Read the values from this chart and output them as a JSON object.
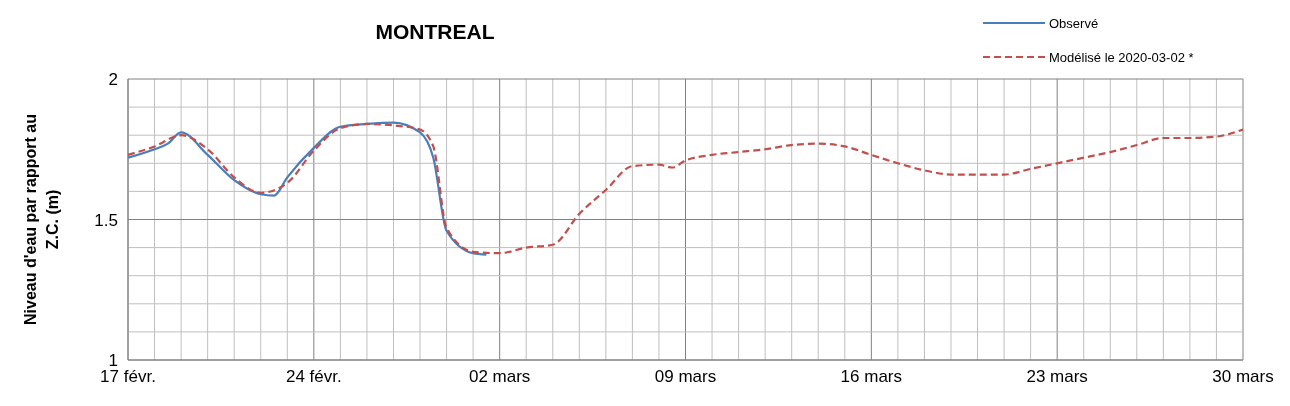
{
  "chart_data": {
    "type": "line",
    "title": "MONTREAL",
    "ylabel": "Niveau d'eau par rapport au Z.C. (m)",
    "xlim": [
      "2020-02-17",
      "2020-03-30"
    ],
    "xticks": [
      {
        "value": "2020-02-17",
        "label": "17 févr."
      },
      {
        "value": "2020-02-18",
        "label": null
      },
      {
        "value": "2020-02-19",
        "label": null
      },
      {
        "value": "2020-02-20",
        "label": null
      },
      {
        "value": "2020-02-21",
        "label": null
      },
      {
        "value": "2020-02-22",
        "label": null
      },
      {
        "value": "2020-02-23",
        "label": null
      },
      {
        "value": "2020-02-24",
        "label": "24 févr."
      },
      {
        "value": "2020-02-25",
        "label": null
      },
      {
        "value": "2020-02-26",
        "label": null
      },
      {
        "value": "2020-02-27",
        "label": null
      },
      {
        "value": "2020-02-28",
        "label": null
      },
      {
        "value": "2020-02-29",
        "label": null
      },
      {
        "value": "2020-03-01",
        "label": null
      },
      {
        "value": "2020-03-02",
        "label": "02 mars"
      },
      {
        "value": "2020-03-03",
        "label": null
      },
      {
        "value": "2020-03-04",
        "label": null
      },
      {
        "value": "2020-03-05",
        "label": null
      },
      {
        "value": "2020-03-06",
        "label": null
      },
      {
        "value": "2020-03-07",
        "label": null
      },
      {
        "value": "2020-03-08",
        "label": null
      },
      {
        "value": "2020-03-09",
        "label": "09 mars"
      },
      {
        "value": "2020-03-10",
        "label": null
      },
      {
        "value": "2020-03-11",
        "label": null
      },
      {
        "value": "2020-03-12",
        "label": null
      },
      {
        "value": "2020-03-13",
        "label": null
      },
      {
        "value": "2020-03-14",
        "label": null
      },
      {
        "value": "2020-03-15",
        "label": null
      },
      {
        "value": "2020-03-16",
        "label": "16 mars"
      },
      {
        "value": "2020-03-17",
        "label": null
      },
      {
        "value": "2020-03-18",
        "label": null
      },
      {
        "value": "2020-03-19",
        "label": null
      },
      {
        "value": "2020-03-20",
        "label": null
      },
      {
        "value": "2020-03-21",
        "label": null
      },
      {
        "value": "2020-03-22",
        "label": null
      },
      {
        "value": "2020-03-23",
        "label": "23 mars"
      },
      {
        "value": "2020-03-24",
        "label": null
      },
      {
        "value": "2020-03-25",
        "label": null
      },
      {
        "value": "2020-03-26",
        "label": null
      },
      {
        "value": "2020-03-27",
        "label": null
      },
      {
        "value": "2020-03-28",
        "label": null
      },
      {
        "value": "2020-03-29",
        "label": null
      },
      {
        "value": "2020-03-30",
        "label": "30 mars"
      }
    ],
    "ylim": [
      1,
      2
    ],
    "yticks": [
      1,
      {
        "value": 1.1,
        "label": null
      },
      {
        "value": 1.2,
        "label": null
      },
      {
        "value": 1.3,
        "label": null
      },
      {
        "value": 1.4,
        "label": null
      },
      1.5,
      {
        "value": 1.6,
        "label": null
      },
      {
        "value": 1.7,
        "label": null
      },
      {
        "value": 1.8,
        "label": null
      },
      {
        "value": 1.9,
        "label": null
      },
      2
    ],
    "grid": true,
    "legend": "top right",
    "marker": "none",
    "series": [
      {
        "name": "Observé",
        "color": "#4a7ebb",
        "line_style": "solid",
        "x": [
          "2020-02-17",
          "2020-02-18",
          "2020-02-18T12:00",
          "2020-02-19",
          "2020-02-20",
          "2020-02-21",
          "2020-02-22",
          "2020-02-22T12:00",
          "2020-02-23",
          "2020-02-24",
          "2020-02-25",
          "2020-02-26",
          "2020-02-27",
          "2020-02-28",
          "2020-02-28T12:00",
          "2020-02-29",
          "2020-03-01",
          "2020-03-01T12:00"
        ],
        "values": [
          1.72,
          1.75,
          1.77,
          1.81,
          1.73,
          1.64,
          1.59,
          1.585,
          1.65,
          1.755,
          1.83,
          1.84,
          1.845,
          1.81,
          1.72,
          1.46,
          1.38,
          1.375
        ]
      },
      {
        "name": "Modélisé le 2020-03-02 *",
        "color": "#c0504d",
        "line_style": "dashed",
        "x": [
          "2020-02-17",
          "2020-02-18",
          "2020-02-19",
          "2020-02-20",
          "2020-02-21",
          "2020-02-22",
          "2020-02-23",
          "2020-02-24",
          "2020-02-25",
          "2020-02-26",
          "2020-02-27",
          "2020-02-28",
          "2020-02-28T12:00",
          "2020-02-29",
          "2020-03-01",
          "2020-03-02",
          "2020-03-03",
          "2020-03-04",
          "2020-03-05",
          "2020-03-06",
          "2020-03-07",
          "2020-03-08",
          "2020-03-08T12:00",
          "2020-03-09",
          "2020-03-10",
          "2020-03-11",
          "2020-03-12",
          "2020-03-13",
          "2020-03-14",
          "2020-03-15",
          "2020-03-16",
          "2020-03-17",
          "2020-03-18",
          "2020-03-19",
          "2020-03-20",
          "2020-03-21",
          "2020-03-22",
          "2020-03-23",
          "2020-03-24",
          "2020-03-25",
          "2020-03-26",
          "2020-03-27",
          "2020-03-28",
          "2020-03-29",
          "2020-03-30"
        ],
        "values": [
          1.73,
          1.76,
          1.8,
          1.75,
          1.65,
          1.595,
          1.63,
          1.745,
          1.825,
          1.84,
          1.835,
          1.82,
          1.76,
          1.47,
          1.385,
          1.38,
          1.4,
          1.41,
          1.52,
          1.605,
          1.69,
          1.695,
          1.685,
          1.71,
          1.73,
          1.74,
          1.75,
          1.765,
          1.77,
          1.76,
          1.73,
          1.7,
          1.675,
          1.66,
          1.66,
          1.66,
          1.68,
          1.7,
          1.72,
          1.74,
          1.765,
          1.79,
          1.79,
          1.795,
          1.82
        ]
      }
    ]
  }
}
